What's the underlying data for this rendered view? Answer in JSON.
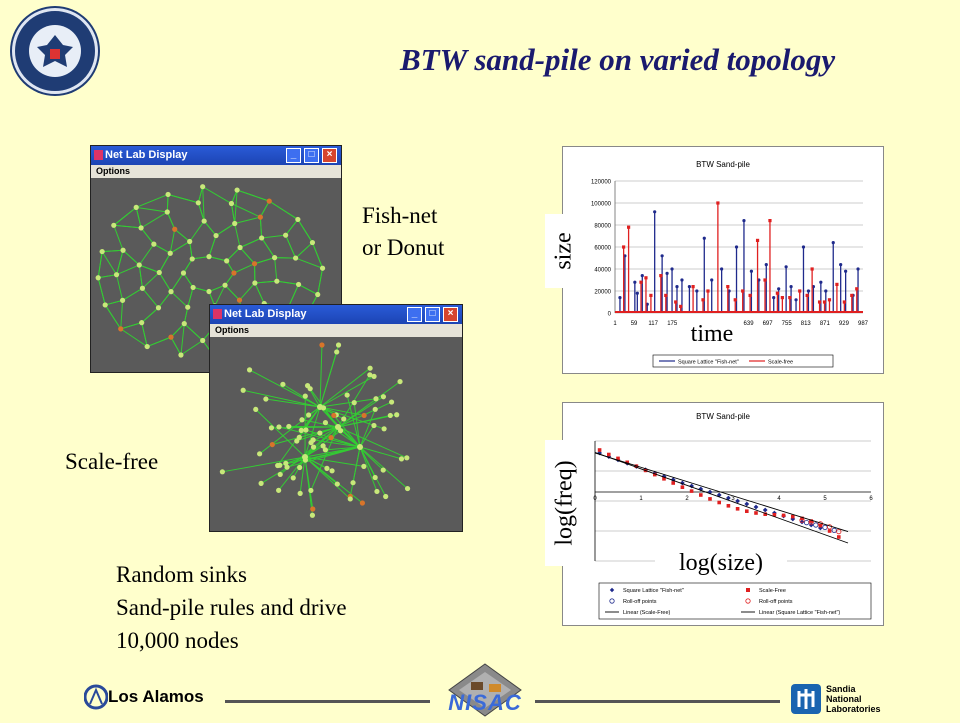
{
  "slide": {
    "title": "BTW sand-pile on varied topology",
    "fishnet_line1": "Fish-net",
    "fishnet_line2": "or Donut",
    "scalefree_label": "Scale-free",
    "bullets": [
      "Random sinks",
      "Sand-pile rules and drive",
      "10,000 nodes"
    ]
  },
  "windows": {
    "top": {
      "title": "Net Lab Display",
      "menu": "Options"
    },
    "bottom": {
      "title": "Net Lab Display",
      "menu": "Options"
    }
  },
  "logos": {
    "seal": "seal-icon",
    "los_alamos": "Los Alamos",
    "nisac": "NISAC",
    "sandia_line1": "Sandia",
    "sandia_line2": "National",
    "sandia_line3": "Laboratories"
  },
  "colors": {
    "background": "#ffffcc",
    "title": "#1a1a6e",
    "series_square": "#1f2a8c",
    "series_scalefree": "#e02020",
    "node_green": "#c8e87a",
    "node_orange": "#d8742a",
    "edge_green": "#33cc33"
  },
  "chart_data": [
    {
      "type": "line",
      "title": "BTW Sand-pile",
      "xlabel": "time",
      "ylabel": "size",
      "ylim": [
        0,
        120000
      ],
      "yticks": [
        "120000",
        "100000",
        "80000",
        "60000",
        "40000",
        "20000",
        "0"
      ],
      "xticks": [
        "1",
        "59",
        "117",
        "175",
        "23",
        "3",
        "581",
        "639",
        "697",
        "755",
        "813",
        "871",
        "929",
        "987"
      ],
      "series": [
        {
          "name": "Square Lattice \"Fish-net\"",
          "color": "#1f2a8c",
          "spikes": [
            [
              2,
              14000
            ],
            [
              4,
              52000
            ],
            [
              8,
              28000
            ],
            [
              9,
              18000
            ],
            [
              11,
              34000
            ],
            [
              13,
              8000
            ],
            [
              16,
              92000
            ],
            [
              19,
              52000
            ],
            [
              21,
              36000
            ],
            [
              23,
              40000
            ],
            [
              25,
              24000
            ],
            [
              27,
              30000
            ],
            [
              30,
              24000
            ],
            [
              33,
              20000
            ],
            [
              36,
              68000
            ],
            [
              39,
              30000
            ],
            [
              43,
              40000
            ],
            [
              46,
              20000
            ],
            [
              49,
              60000
            ],
            [
              52,
              84000
            ],
            [
              55,
              38000
            ],
            [
              58,
              30000
            ],
            [
              61,
              44000
            ],
            [
              64,
              14000
            ],
            [
              66,
              22000
            ],
            [
              69,
              42000
            ],
            [
              71,
              24000
            ],
            [
              73,
              12000
            ],
            [
              76,
              60000
            ],
            [
              78,
              20000
            ],
            [
              80,
              24000
            ],
            [
              83,
              28000
            ],
            [
              85,
              20000
            ],
            [
              88,
              64000
            ],
            [
              91,
              44000
            ],
            [
              93,
              38000
            ],
            [
              96,
              16000
            ],
            [
              98,
              40000
            ]
          ]
        },
        {
          "name": "Scale-free",
          "color": "#e02020",
          "spikes": [
            [
              3,
              60000
            ],
            [
              5,
              78000
            ],
            [
              10,
              28000
            ],
            [
              12,
              32000
            ],
            [
              14,
              16000
            ],
            [
              18,
              34000
            ],
            [
              20,
              16000
            ],
            [
              24,
              10000
            ],
            [
              26,
              6000
            ],
            [
              31,
              24000
            ],
            [
              35,
              12000
            ],
            [
              37,
              20000
            ],
            [
              41,
              100000
            ],
            [
              45,
              24000
            ],
            [
              48,
              12000
            ],
            [
              51,
              20000
            ],
            [
              54,
              16000
            ],
            [
              57,
              66000
            ],
            [
              60,
              30000
            ],
            [
              62,
              84000
            ],
            [
              65,
              18000
            ],
            [
              67,
              14000
            ],
            [
              70,
              14000
            ],
            [
              74,
              20000
            ],
            [
              77,
              16000
            ],
            [
              79,
              40000
            ],
            [
              82,
              10000
            ],
            [
              84,
              10000
            ],
            [
              86,
              12000
            ],
            [
              89,
              26000
            ],
            [
              92,
              10000
            ],
            [
              95,
              16000
            ],
            [
              97,
              22000
            ]
          ]
        }
      ],
      "legend": "bottom"
    },
    {
      "type": "scatter",
      "title": "BTW Sand-pile",
      "xlabel": "log(size)",
      "ylabel": "log(freq)",
      "xlim": [
        0,
        6
      ],
      "xticks": [
        "0",
        "1",
        "2",
        "3",
        "4",
        "5",
        "6"
      ],
      "series": [
        {
          "name": "Square Lattice \"Fish-net\"",
          "color": "#1f2a8c",
          "marker": "diamond",
          "points": [
            [
              0.1,
              3.6
            ],
            [
              0.3,
              3.48
            ],
            [
              0.5,
              3.37
            ],
            [
              0.7,
              3.26
            ],
            [
              0.9,
              3.15
            ],
            [
              1.1,
              3.04
            ],
            [
              1.3,
              2.93
            ],
            [
              1.5,
              2.82
            ],
            [
              1.7,
              2.71
            ],
            [
              1.9,
              2.6
            ],
            [
              2.1,
              2.5
            ],
            [
              2.3,
              2.4
            ],
            [
              2.5,
              2.3
            ],
            [
              2.7,
              2.2
            ],
            [
              2.9,
              2.1
            ],
            [
              3.1,
              2.0
            ],
            [
              3.3,
              1.9
            ],
            [
              3.5,
              1.8
            ],
            [
              3.7,
              1.7
            ],
            [
              3.9,
              1.6
            ],
            [
              4.1,
              1.5
            ],
            [
              4.3,
              1.4
            ],
            [
              4.5,
              1.3
            ],
            [
              4.7,
              1.2
            ],
            [
              4.9,
              1.1
            ]
          ]
        },
        {
          "name": "Scale-Free",
          "color": "#e02020",
          "marker": "square",
          "points": [
            [
              0.1,
              3.7
            ],
            [
              0.3,
              3.55
            ],
            [
              0.5,
              3.42
            ],
            [
              0.7,
              3.29
            ],
            [
              0.9,
              3.16
            ],
            [
              1.1,
              3.02
            ],
            [
              1.3,
              2.88
            ],
            [
              1.5,
              2.74
            ],
            [
              1.7,
              2.6
            ],
            [
              1.9,
              2.46
            ],
            [
              2.1,
              2.33
            ],
            [
              2.3,
              2.2
            ],
            [
              2.5,
              2.07
            ],
            [
              2.7,
              1.95
            ],
            [
              2.9,
              1.84
            ],
            [
              3.1,
              1.74
            ],
            [
              3.3,
              1.66
            ],
            [
              3.5,
              1.6
            ],
            [
              3.7,
              1.56
            ],
            [
              3.9,
              1.54
            ],
            [
              4.1,
              1.52
            ],
            [
              4.3,
              1.48
            ],
            [
              4.5,
              1.42
            ],
            [
              4.7,
              1.33
            ],
            [
              4.9,
              1.18
            ],
            [
              5.1,
              1.0
            ],
            [
              5.3,
              0.8
            ]
          ]
        },
        {
          "name": "Roll-off points",
          "color": "#1f2a8c",
          "marker": "open-circle",
          "points": [
            [
              4.6,
              1.28
            ],
            [
              4.8,
              1.2
            ],
            [
              5.0,
              1.12
            ],
            [
              5.2,
              1.02
            ]
          ]
        },
        {
          "name": "Roll-off points",
          "color": "#e02020",
          "marker": "open-circle",
          "points": [
            [
              4.5,
              1.36
            ],
            [
              4.7,
              1.3
            ],
            [
              4.9,
              1.24
            ],
            [
              5.1,
              1.14
            ],
            [
              5.3,
              0.98
            ]
          ]
        },
        {
          "name": "Linear (Scale-Free)",
          "color": "#000000",
          "marker": "line",
          "points": [
            [
              0.0,
              3.62
            ],
            [
              5.5,
              0.6
            ]
          ]
        },
        {
          "name": "Linear (Square Lattice \"Fish-net\")",
          "color": "#000000",
          "marker": "line",
          "points": [
            [
              0.0,
              3.6
            ],
            [
              5.5,
              0.98
            ]
          ]
        }
      ],
      "legend": "bottom"
    }
  ]
}
